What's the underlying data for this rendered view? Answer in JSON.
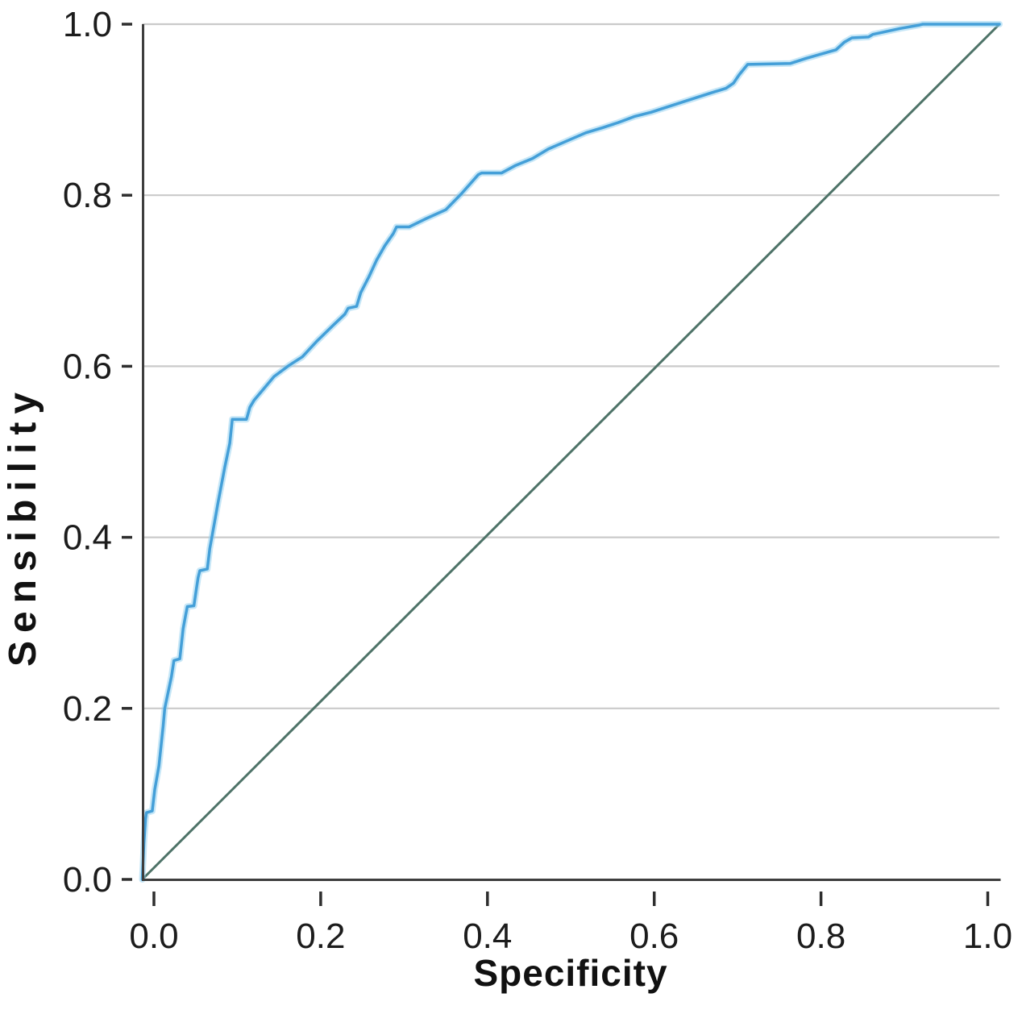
{
  "chart_data": {
    "type": "line",
    "title": "",
    "xlabel": "Specificity",
    "ylabel": "Sensibility",
    "xlim": [
      -0.014,
      1.014
    ],
    "ylim": [
      0,
      1
    ],
    "x_ticks": [
      0.0,
      0.2,
      0.4,
      0.6,
      0.8,
      1.0
    ],
    "y_ticks": [
      0.0,
      0.2,
      0.4,
      0.6,
      0.8,
      1.0
    ],
    "x_tick_labels": [
      "0.0",
      "0.2",
      "0.4",
      "0.6",
      "0.8",
      "1.0"
    ],
    "y_tick_labels": [
      "0.0",
      "0.2",
      "0.4",
      "0.6",
      "0.8",
      "1.0"
    ],
    "grid": "horizontal-only",
    "gridline_y_values": [
      0.2,
      0.4,
      0.6,
      0.8,
      1.0
    ],
    "legend": "none",
    "series": [
      {
        "name": "reference-diagonal",
        "color": "#4e7368",
        "points": [
          [
            -0.014,
            0.0
          ],
          [
            1.014,
            1.0
          ]
        ]
      },
      {
        "name": "roc-curve",
        "color": "#449fd8",
        "halo_color": "#8fd0ef",
        "points": [
          [
            -0.014,
            0.0
          ],
          [
            -0.012,
            0.043
          ],
          [
            -0.01,
            0.071
          ],
          [
            -0.009,
            0.078
          ],
          [
            -0.002,
            0.08
          ],
          [
            0.001,
            0.105
          ],
          [
            0.006,
            0.133
          ],
          [
            0.011,
            0.179
          ],
          [
            0.013,
            0.2
          ],
          [
            0.021,
            0.237
          ],
          [
            0.024,
            0.256
          ],
          [
            0.031,
            0.258
          ],
          [
            0.035,
            0.293
          ],
          [
            0.038,
            0.309
          ],
          [
            0.04,
            0.319
          ],
          [
            0.048,
            0.32
          ],
          [
            0.051,
            0.34
          ],
          [
            0.053,
            0.353
          ],
          [
            0.055,
            0.361
          ],
          [
            0.064,
            0.363
          ],
          [
            0.067,
            0.387
          ],
          [
            0.07,
            0.403
          ],
          [
            0.077,
            0.441
          ],
          [
            0.085,
            0.482
          ],
          [
            0.091,
            0.51
          ],
          [
            0.093,
            0.529
          ],
          [
            0.094,
            0.538
          ],
          [
            0.111,
            0.538
          ],
          [
            0.115,
            0.552
          ],
          [
            0.12,
            0.56
          ],
          [
            0.144,
            0.588
          ],
          [
            0.162,
            0.601
          ],
          [
            0.178,
            0.611
          ],
          [
            0.196,
            0.63
          ],
          [
            0.215,
            0.648
          ],
          [
            0.229,
            0.661
          ],
          [
            0.233,
            0.668
          ],
          [
            0.243,
            0.67
          ],
          [
            0.248,
            0.686
          ],
          [
            0.258,
            0.705
          ],
          [
            0.267,
            0.724
          ],
          [
            0.277,
            0.741
          ],
          [
            0.287,
            0.755
          ],
          [
            0.291,
            0.763
          ],
          [
            0.306,
            0.763
          ],
          [
            0.325,
            0.772
          ],
          [
            0.35,
            0.783
          ],
          [
            0.369,
            0.802
          ],
          [
            0.389,
            0.824
          ],
          [
            0.393,
            0.826
          ],
          [
            0.417,
            0.826
          ],
          [
            0.434,
            0.835
          ],
          [
            0.454,
            0.843
          ],
          [
            0.473,
            0.854
          ],
          [
            0.499,
            0.865
          ],
          [
            0.518,
            0.873
          ],
          [
            0.538,
            0.879
          ],
          [
            0.557,
            0.885
          ],
          [
            0.576,
            0.892
          ],
          [
            0.596,
            0.897
          ],
          [
            0.615,
            0.903
          ],
          [
            0.634,
            0.909
          ],
          [
            0.666,
            0.919
          ],
          [
            0.686,
            0.925
          ],
          [
            0.695,
            0.931
          ],
          [
            0.702,
            0.941
          ],
          [
            0.712,
            0.953
          ],
          [
            0.763,
            0.954
          ],
          [
            0.782,
            0.96
          ],
          [
            0.818,
            0.97
          ],
          [
            0.828,
            0.979
          ],
          [
            0.837,
            0.984
          ],
          [
            0.857,
            0.985
          ],
          [
            0.862,
            0.988
          ],
          [
            0.895,
            0.995
          ],
          [
            0.918,
            0.999
          ],
          [
            0.922,
            1.0
          ],
          [
            1.014,
            1.0
          ]
        ]
      }
    ],
    "colors": {
      "gridline": "#cacaca",
      "spine": "#3e3e3e",
      "tick": "#2e2e2e",
      "tick_label": "#1c1c1c"
    }
  }
}
